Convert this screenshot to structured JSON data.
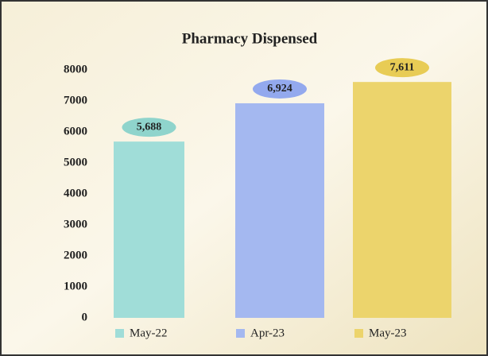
{
  "chart_data": {
    "type": "bar",
    "title": "Pharmacy Dispensed",
    "categories": [
      "May-22",
      "Apr-23",
      "May-23"
    ],
    "values": [
      5688,
      6924,
      7611
    ],
    "value_labels": [
      "5,688",
      "6,924",
      "7,611"
    ],
    "colors": [
      "#a0ddd8",
      "#a4b8f0",
      "#ecd46c"
    ],
    "label_colors": [
      "#8fd4cc",
      "#93a9ee",
      "#e8cc55"
    ],
    "ylim": [
      0,
      8000
    ],
    "yticks": [
      0,
      1000,
      2000,
      3000,
      4000,
      5000,
      6000,
      7000,
      8000
    ],
    "grid": false,
    "legend": "bottom"
  }
}
